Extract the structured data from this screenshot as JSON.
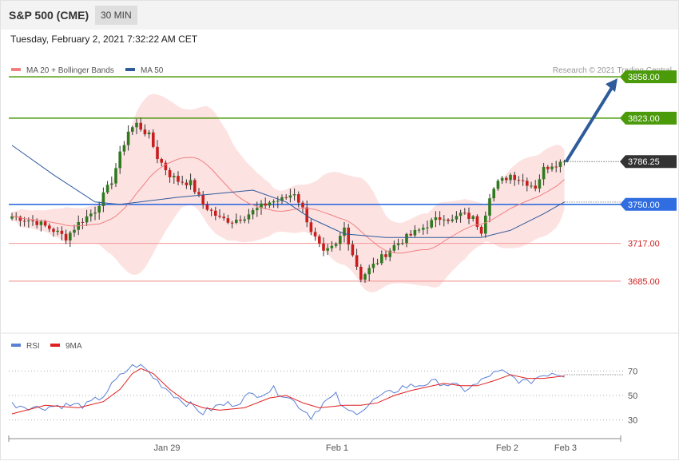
{
  "header": {
    "symbol": "S&P 500 (CME)",
    "timeframe": "30 MIN"
  },
  "timestamp": "Tuesday, February 2, 2021 7:32:22 AM CET",
  "legend": {
    "ma20": {
      "label": "MA 20 + Bollinger Bands",
      "color": "#f08080"
    },
    "ma50": {
      "label": "MA 50",
      "color": "#2e5b9a"
    }
  },
  "copyright": "Research © 2021 Trading Central",
  "rsi_legend": {
    "rsi": {
      "label": "RSI",
      "color": "#5b7fd6"
    },
    "ma9": {
      "label": "9MA",
      "color": "#e02020"
    }
  },
  "chart_data": [
    {
      "type": "candlestick",
      "price_range": [
        3645,
        3875
      ],
      "current_price": {
        "label": "3786.25",
        "value": 3786.25
      },
      "levels": [
        {
          "label": "3858.00",
          "value": 3858,
          "kind": "resistance",
          "color": "#4a9a0a"
        },
        {
          "label": "3823.00",
          "value": 3823,
          "kind": "resistance",
          "color": "#4a9a0a"
        },
        {
          "label": "3750.00",
          "value": 3750,
          "kind": "pivot",
          "color": "#2f6de0"
        },
        {
          "label": "3717.00",
          "value": 3717,
          "kind": "support",
          "color": "#d02020"
        },
        {
          "label": "3685.00",
          "value": 3685,
          "kind": "support",
          "color": "#d02020"
        }
      ],
      "target_arrow": {
        "from": 3786,
        "to": 3858
      },
      "x_labels": [
        "Jan 29",
        "Feb 1",
        "Feb 2",
        "Feb 3"
      ],
      "candle_count": 117,
      "close_path": [
        [
          0,
          3740
        ],
        [
          6,
          3735
        ],
        [
          10,
          3728
        ],
        [
          13,
          3722
        ],
        [
          16,
          3734
        ],
        [
          20,
          3745
        ],
        [
          24,
          3770
        ],
        [
          26,
          3792
        ],
        [
          28,
          3812
        ],
        [
          30,
          3818
        ],
        [
          33,
          3808
        ],
        [
          35,
          3790
        ],
        [
          38,
          3775
        ],
        [
          40,
          3770
        ],
        [
          43,
          3768
        ],
        [
          46,
          3750
        ],
        [
          50,
          3738
        ],
        [
          53,
          3736
        ],
        [
          56,
          3740
        ],
        [
          59,
          3746
        ],
        [
          62,
          3752
        ],
        [
          65,
          3754
        ],
        [
          68,
          3760
        ],
        [
          70,
          3746
        ],
        [
          72,
          3728
        ],
        [
          75,
          3708
        ],
        [
          78,
          3715
        ],
        [
          80,
          3730
        ],
        [
          82,
          3708
        ],
        [
          84,
          3688
        ],
        [
          86,
          3695
        ],
        [
          89,
          3705
        ],
        [
          92,
          3715
        ],
        [
          95,
          3722
        ],
        [
          98,
          3728
        ],
        [
          101,
          3735
        ],
        [
          104,
          3740
        ],
        [
          106,
          3736
        ],
        [
          108,
          3742
        ],
        [
          111,
          3738
        ],
        [
          113,
          3728
        ],
        [
          115,
          3758
        ],
        [
          117,
          3768
        ],
        [
          120,
          3775
        ],
        [
          123,
          3770
        ],
        [
          126,
          3765
        ],
        [
          128,
          3780
        ],
        [
          130,
          3784
        ],
        [
          133,
          3786
        ]
      ],
      "ma50_path": [
        [
          0,
          3800
        ],
        [
          10,
          3775
        ],
        [
          20,
          3752
        ],
        [
          26,
          3750
        ],
        [
          40,
          3756
        ],
        [
          52,
          3760
        ],
        [
          58,
          3762
        ],
        [
          66,
          3752
        ],
        [
          72,
          3738
        ],
        [
          80,
          3725
        ],
        [
          90,
          3722
        ],
        [
          98,
          3722
        ],
        [
          108,
          3722
        ],
        [
          113,
          3722
        ],
        [
          120,
          3728
        ],
        [
          128,
          3742
        ],
        [
          133,
          3752
        ]
      ]
    },
    {
      "type": "line",
      "title": "RSI",
      "y_ticks": [
        70,
        50,
        30
      ],
      "ylim": [
        20,
        82
      ],
      "rsi_path": [
        [
          0,
          43
        ],
        [
          6,
          40
        ],
        [
          12,
          42
        ],
        [
          18,
          42
        ],
        [
          22,
          50
        ],
        [
          25,
          62
        ],
        [
          28,
          72
        ],
        [
          30,
          75
        ],
        [
          32,
          72
        ],
        [
          34,
          65
        ],
        [
          37,
          56
        ],
        [
          40,
          48
        ],
        [
          43,
          42
        ],
        [
          46,
          36
        ],
        [
          50,
          42
        ],
        [
          54,
          44
        ],
        [
          57,
          50
        ],
        [
          60,
          52
        ],
        [
          63,
          55
        ],
        [
          66,
          50
        ],
        [
          69,
          42
        ],
        [
          72,
          33
        ],
        [
          75,
          44
        ],
        [
          78,
          50
        ],
        [
          80,
          38
        ],
        [
          82,
          36
        ],
        [
          85,
          40
        ],
        [
          88,
          48
        ],
        [
          91,
          52
        ],
        [
          94,
          57
        ],
        [
          97,
          58
        ],
        [
          100,
          60
        ],
        [
          103,
          61
        ],
        [
          106,
          58
        ],
        [
          109,
          55
        ],
        [
          112,
          59
        ],
        [
          115,
          67
        ],
        [
          118,
          69
        ],
        [
          121,
          64
        ],
        [
          124,
          60
        ],
        [
          127,
          66
        ],
        [
          130,
          69
        ],
        [
          133,
          67
        ]
      ],
      "ma9_path": [
        [
          0,
          35
        ],
        [
          8,
          42
        ],
        [
          16,
          40
        ],
        [
          22,
          45
        ],
        [
          26,
          55
        ],
        [
          29,
          68
        ],
        [
          31,
          72
        ],
        [
          34,
          68
        ],
        [
          38,
          55
        ],
        [
          42,
          45
        ],
        [
          46,
          40
        ],
        [
          50,
          38
        ],
        [
          56,
          40
        ],
        [
          62,
          48
        ],
        [
          66,
          50
        ],
        [
          70,
          44
        ],
        [
          74,
          40
        ],
        [
          80,
          42
        ],
        [
          84,
          42
        ],
        [
          88,
          44
        ],
        [
          92,
          50
        ],
        [
          96,
          54
        ],
        [
          100,
          57
        ],
        [
          104,
          60
        ],
        [
          108,
          58
        ],
        [
          112,
          58
        ],
        [
          116,
          62
        ],
        [
          120,
          67
        ],
        [
          124,
          64
        ],
        [
          128,
          64
        ],
        [
          133,
          66
        ]
      ]
    }
  ]
}
